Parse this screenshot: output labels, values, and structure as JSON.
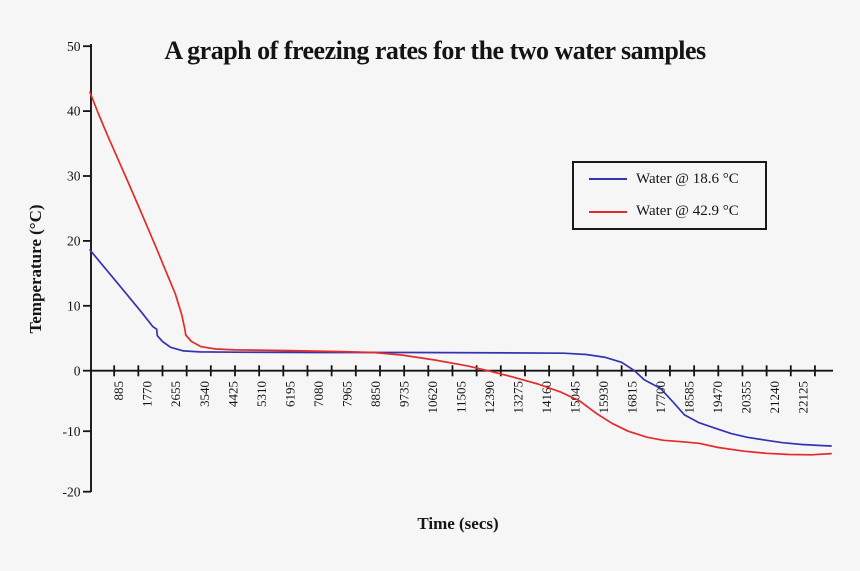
{
  "background_color": "#f6f6f6",
  "chart_data": {
    "type": "line",
    "title": "A graph of freezing rates for the two water samples",
    "xlabel": "Time (secs)",
    "ylabel": "Temperature (°C)",
    "xlim": [
      0,
      23000
    ],
    "ylim": [
      -20,
      50
    ],
    "grid": false,
    "axis_color": "#141414",
    "x_tick_labels": [
      885,
      1770,
      2655,
      3540,
      4425,
      5310,
      6195,
      7080,
      7965,
      8850,
      9735,
      10620,
      11505,
      12390,
      13275,
      14160,
      15045,
      15930,
      16815,
      17700,
      18585,
      19470,
      20355,
      21240,
      22125
    ],
    "x_minor_tick_step_secs": 750,
    "y_ticks": [
      -20,
      -10,
      0,
      10,
      20,
      30,
      40,
      50
    ],
    "legend_position": "upper-right",
    "series": [
      {
        "name": "Water @ 18.6 °C",
        "color": "#3434b2",
        "points": [
          [
            0,
            18.6
          ],
          [
            400,
            16.2
          ],
          [
            800,
            13.8
          ],
          [
            1200,
            11.4
          ],
          [
            1600,
            9.0
          ],
          [
            1950,
            6.8
          ],
          [
            2070,
            6.4
          ],
          [
            2090,
            5.4
          ],
          [
            2250,
            4.5
          ],
          [
            2500,
            3.6
          ],
          [
            2900,
            3.05
          ],
          [
            3400,
            2.9
          ],
          [
            4500,
            2.85
          ],
          [
            7000,
            2.8
          ],
          [
            10000,
            2.8
          ],
          [
            13000,
            2.75
          ],
          [
            14700,
            2.7
          ],
          [
            15400,
            2.5
          ],
          [
            16000,
            2.05
          ],
          [
            16500,
            1.3
          ],
          [
            16900,
            0.0
          ],
          [
            17200,
            -1.5
          ],
          [
            17700,
            -2.9
          ],
          [
            18100,
            -5.2
          ],
          [
            18450,
            -7.3
          ],
          [
            18900,
            -8.6
          ],
          [
            19400,
            -9.5
          ],
          [
            19900,
            -10.4
          ],
          [
            20400,
            -11.0
          ],
          [
            21000,
            -11.5
          ],
          [
            21500,
            -11.9
          ],
          [
            22100,
            -12.2
          ],
          [
            22600,
            -12.35
          ],
          [
            23000,
            -12.45
          ]
        ]
      },
      {
        "name": "Water @ 42.9 °C",
        "color": "#e42b2b",
        "points": [
          [
            0,
            42.9
          ],
          [
            250,
            39.7
          ],
          [
            550,
            36.2
          ],
          [
            850,
            32.8
          ],
          [
            1150,
            29.4
          ],
          [
            1450,
            26.0
          ],
          [
            1750,
            22.5
          ],
          [
            2050,
            19.0
          ],
          [
            2350,
            15.4
          ],
          [
            2650,
            11.8
          ],
          [
            2850,
            8.6
          ],
          [
            2950,
            6.3
          ],
          [
            2970,
            5.5
          ],
          [
            3150,
            4.5
          ],
          [
            3450,
            3.7
          ],
          [
            3900,
            3.35
          ],
          [
            4500,
            3.2
          ],
          [
            6200,
            3.1
          ],
          [
            7800,
            2.95
          ],
          [
            8800,
            2.8
          ],
          [
            9700,
            2.4
          ],
          [
            10700,
            1.65
          ],
          [
            11700,
            0.75
          ],
          [
            12350,
            0.0
          ],
          [
            13100,
            -1.0
          ],
          [
            13900,
            -2.2
          ],
          [
            14600,
            -3.5
          ],
          [
            15200,
            -5.0
          ],
          [
            15700,
            -7.0
          ],
          [
            16200,
            -8.7
          ],
          [
            16700,
            -10.0
          ],
          [
            17300,
            -11.0
          ],
          [
            17800,
            -11.5
          ],
          [
            18400,
            -11.75
          ],
          [
            18900,
            -12.0
          ],
          [
            19500,
            -12.7
          ],
          [
            20300,
            -13.3
          ],
          [
            21000,
            -13.65
          ],
          [
            21700,
            -13.85
          ],
          [
            22400,
            -13.9
          ],
          [
            23000,
            -13.7
          ]
        ]
      }
    ]
  }
}
